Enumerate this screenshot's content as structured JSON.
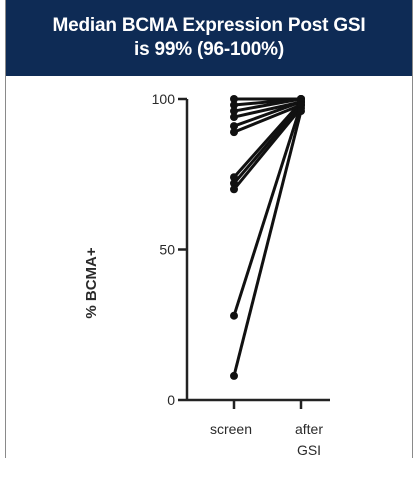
{
  "slide": {
    "colors": {
      "banner": "#0e2b55",
      "banner_text": "#ffffff",
      "series": "#111111"
    },
    "title_line_1": "Median BCMA Expression Post GSI",
    "title_line_2": "is 99% (96-100%)"
  },
  "chart_data": {
    "type": "line",
    "categories": [
      "screen",
      "after GSI"
    ],
    "xtick_labels": [
      [
        "screen"
      ],
      [
        "after",
        "GSI"
      ]
    ],
    "ylabel": "% BCMA+",
    "yticks": [
      0,
      50,
      100
    ],
    "ylim": [
      0,
      100
    ],
    "grid": false,
    "legend": "none",
    "series": [
      {
        "values": [
          100,
          100
        ]
      },
      {
        "values": [
          98,
          100
        ]
      },
      {
        "values": [
          96,
          100
        ]
      },
      {
        "values": [
          94,
          99
        ]
      },
      {
        "values": [
          91,
          99
        ]
      },
      {
        "values": [
          89,
          98
        ]
      },
      {
        "values": [
          74,
          99
        ]
      },
      {
        "values": [
          72,
          98
        ]
      },
      {
        "values": [
          70,
          97
        ]
      },
      {
        "values": [
          28,
          98
        ]
      },
      {
        "values": [
          8,
          96
        ]
      }
    ]
  }
}
